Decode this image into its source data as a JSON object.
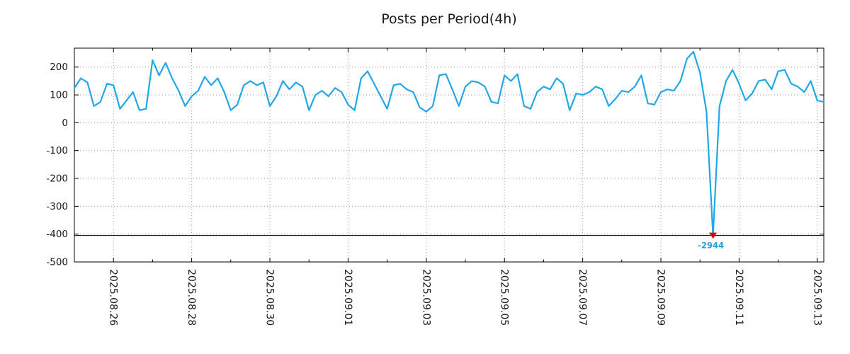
{
  "title": "Posts per Period(4h)",
  "chart_data": {
    "type": "line",
    "title": "Posts per Period(4h)",
    "series_name": "posts",
    "series_color": "#22a7e8",
    "grid": "dotted",
    "grid_color": "#9a9a9a",
    "x_start": "2025.08.25 00:00",
    "interval_hours": 4,
    "values": [
      125,
      160,
      145,
      60,
      75,
      140,
      135,
      50,
      80,
      110,
      45,
      50,
      225,
      170,
      215,
      160,
      115,
      60,
      95,
      115,
      165,
      135,
      160,
      110,
      45,
      65,
      135,
      150,
      135,
      145,
      60,
      95,
      150,
      120,
      145,
      130,
      45,
      100,
      115,
      95,
      125,
      110,
      65,
      45,
      160,
      185,
      140,
      95,
      50,
      135,
      140,
      120,
      110,
      55,
      40,
      60,
      170,
      175,
      120,
      60,
      130,
      150,
      145,
      130,
      75,
      70,
      170,
      150,
      175,
      60,
      50,
      110,
      130,
      120,
      160,
      140,
      45,
      105,
      100,
      110,
      130,
      120,
      60,
      85,
      115,
      110,
      130,
      170,
      70,
      65,
      110,
      120,
      115,
      150,
      230,
      255,
      180,
      40,
      -2944,
      60,
      150,
      190,
      140,
      80,
      105,
      150,
      155,
      120,
      185,
      190,
      140,
      130,
      110,
      150,
      80,
      75
    ],
    "x_ticks": [
      {
        "label": "2025.08.26",
        "index": 6
      },
      {
        "label": "2025.08.28",
        "index": 18
      },
      {
        "label": "2025.08.30",
        "index": 30
      },
      {
        "label": "2025.09.01",
        "index": 42
      },
      {
        "label": "2025.09.03",
        "index": 54
      },
      {
        "label": "2025.09.05",
        "index": 66
      },
      {
        "label": "2025.09.07",
        "index": 78
      },
      {
        "label": "2025.09.09",
        "index": 90
      },
      {
        "label": "2025.09.11",
        "index": 102
      },
      {
        "label": "2025.09.13",
        "index": 114
      }
    ],
    "x_minor_tick_indices": [
      0,
      12,
      24,
      36,
      48,
      60,
      72,
      84,
      96,
      108
    ],
    "y_ticks": [
      200,
      100,
      0,
      -100,
      -200,
      -300,
      -400,
      -500
    ],
    "ylim": [
      -500,
      268
    ],
    "annotations": {
      "cutoff_line_y": -405,
      "spike": {
        "index": 98,
        "value": -2944,
        "label": "-2944",
        "label_color": "#1e9fe6",
        "marker": "triangle-down",
        "marker_color": "#d40000"
      }
    }
  }
}
